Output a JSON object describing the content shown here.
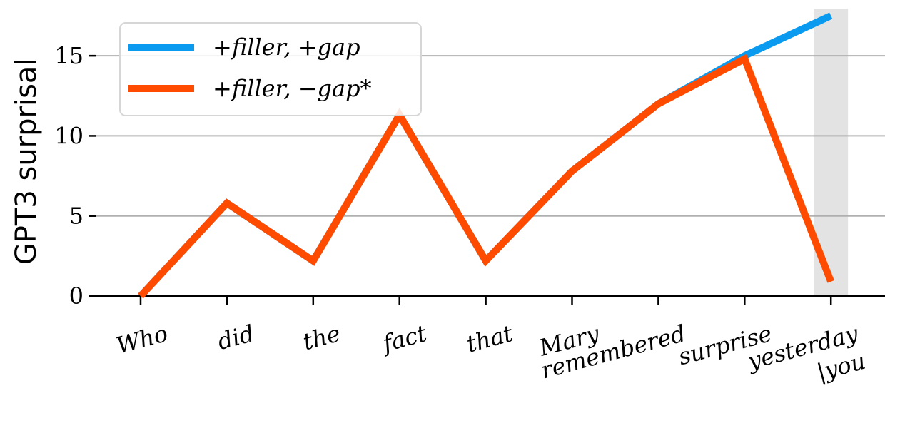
{
  "chart_data": {
    "type": "line",
    "categories": [
      "Who",
      "did",
      "the",
      "fact",
      "that",
      "Mary",
      "remembered",
      "surprise",
      "yesterday\n|you"
    ],
    "series": [
      {
        "name": "+filler, +gap",
        "color": "#0a9bf0",
        "values": [
          0,
          5.8,
          2.2,
          11.3,
          2.2,
          7.8,
          12.0,
          15.0,
          17.5
        ]
      },
      {
        "name": "+filler, −gap*",
        "color": "#ff4b00",
        "values": [
          0,
          5.8,
          2.2,
          11.3,
          2.2,
          7.8,
          12.0,
          14.8,
          0.9
        ]
      }
    ],
    "ylabel": "GPT3 surprisal",
    "xlabel": "",
    "ylim": [
      0,
      17.5
    ],
    "yticks": [
      0,
      5,
      10,
      15
    ],
    "grid": "horizontal",
    "legend_position": "top-left",
    "highlight_category": "yesterday\n|you",
    "highlight_color": "#e3e3e3"
  }
}
